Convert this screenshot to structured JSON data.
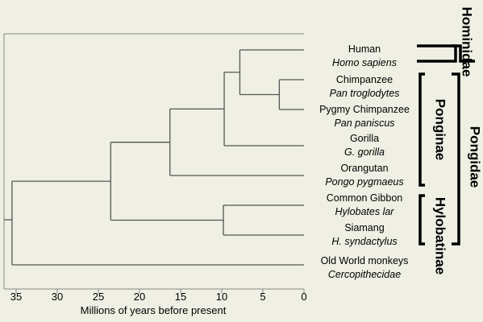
{
  "taxa": [
    {
      "common": "Human",
      "scientific": "Homo sapiens"
    },
    {
      "common": "Chimpanzee",
      "scientific": "Pan troglodytes"
    },
    {
      "common": "Pygmy Chimpanzee",
      "scientific": "Pan paniscus"
    },
    {
      "common": "Gorilla",
      "scientific": "G. gorilla"
    },
    {
      "common": "Orangutan",
      "scientific": "Pongo pygmaeus"
    },
    {
      "common": "Common Gibbon",
      "scientific": "Hylobates lar"
    },
    {
      "common": "Siamang",
      "scientific": "H. syndactylus"
    },
    {
      "common": "Old World monkeys",
      "scientific": "Cercopithecidae"
    }
  ],
  "axis": {
    "label": "Millions of years before present",
    "ticks": [
      "35",
      "30",
      "25",
      "20",
      "15",
      "10",
      "5",
      "0"
    ]
  },
  "nodes_mya": {
    "human_chimps": 7.8,
    "chimp_pygmy": 3,
    "african_apes": 9.7,
    "great_apes": 16.3,
    "gibbons": 9.8,
    "apes": 23.5,
    "catarrhines": 35.5
  },
  "groups": {
    "hominidae": "Hominidae",
    "ponginae": "Ponginae",
    "pongidae": "Pongidae",
    "hylobatinae": "Hylobatinae"
  },
  "colors": {
    "background": "#efefe4",
    "line": "#555555",
    "bracket": "#000000"
  }
}
